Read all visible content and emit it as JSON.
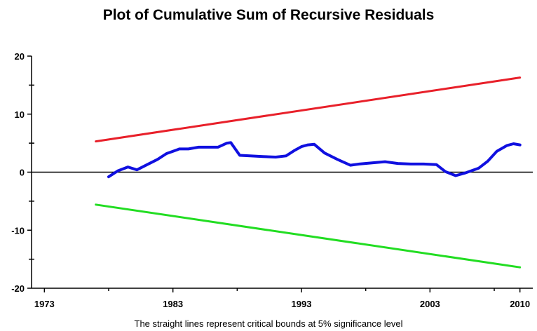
{
  "chart_data": {
    "type": "line",
    "title": "Plot of Cumulative Sum of Recursive Residuals",
    "footnote": "The straight lines represent critical bounds at 5% significance level",
    "xlabel": "",
    "ylabel": "",
    "xlim": [
      1972,
      2011
    ],
    "ylim": [
      -20,
      20
    ],
    "x_ticks": [
      1973,
      1983,
      1993,
      2003,
      2010
    ],
    "y_ticks": [
      20,
      10,
      0,
      -10,
      -20
    ],
    "zero_line": true,
    "grid": false,
    "legend": "none",
    "series": [
      {
        "color": "#e8202a",
        "x": [
          1977,
          2010
        ],
        "values": [
          5.3,
          16.3
        ]
      },
      {
        "color": "#22dd22",
        "x": [
          1977,
          2010
        ],
        "values": [
          -5.6,
          -16.4
        ]
      },
      {
        "color": "#1010e0",
        "x": [
          1978,
          1978.7,
          1979.5,
          1980.2,
          1981,
          1981.8,
          1982.5,
          1983,
          1983.5,
          1984.2,
          1985,
          1985.8,
          1986.5,
          1987.2,
          1987.5,
          1988.2,
          1989,
          1990,
          1991,
          1991.8,
          1992.5,
          1993,
          1993.5,
          1994,
          1994.8,
          1995.8,
          1996.8,
          1997.5,
          1998.5,
          1999.5,
          2000.5,
          2001.5,
          2002.5,
          2003.5,
          2004.2,
          2005,
          2005.8,
          2006.8,
          2007.5,
          2008.2,
          2009,
          2009.5,
          2010
        ],
        "values": [
          -0.8,
          0.2,
          0.9,
          0.4,
          1.3,
          2.2,
          3.2,
          3.6,
          4.0,
          4.0,
          4.3,
          4.3,
          4.3,
          5.0,
          5.1,
          2.9,
          2.8,
          2.7,
          2.6,
          2.8,
          3.8,
          4.4,
          4.7,
          4.8,
          3.3,
          2.2,
          1.2,
          1.4,
          1.6,
          1.8,
          1.5,
          1.4,
          1.4,
          1.3,
          0.1,
          -0.6,
          -0.1,
          0.7,
          1.9,
          3.6,
          4.6,
          4.9,
          4.7
        ]
      }
    ]
  }
}
